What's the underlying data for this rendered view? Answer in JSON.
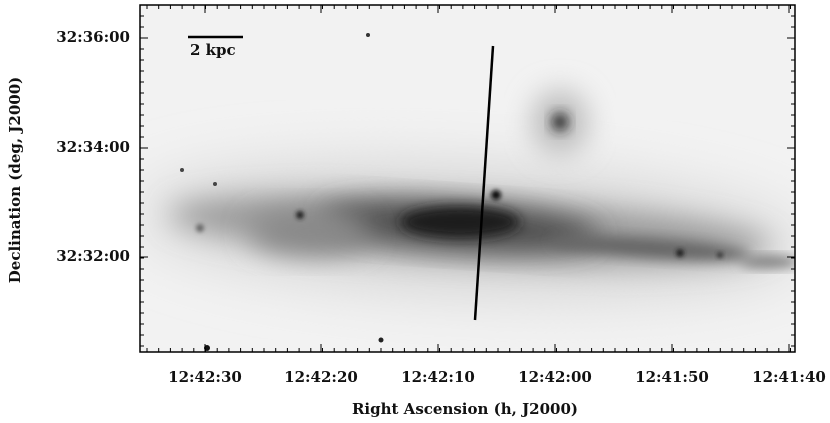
{
  "figure": {
    "x_axis": {
      "label": "Right Ascension (h, J2000)",
      "ticks": [
        "12:42:30",
        "12:42:20",
        "12:42:10",
        "12:42:00",
        "12:41:50",
        "12:41:40"
      ]
    },
    "y_axis": {
      "label": "Declination (deg, J2000)",
      "ticks": [
        "32:36:00",
        "32:34:00",
        "32:32:00"
      ]
    },
    "scale_bar": "2 kpc"
  }
}
